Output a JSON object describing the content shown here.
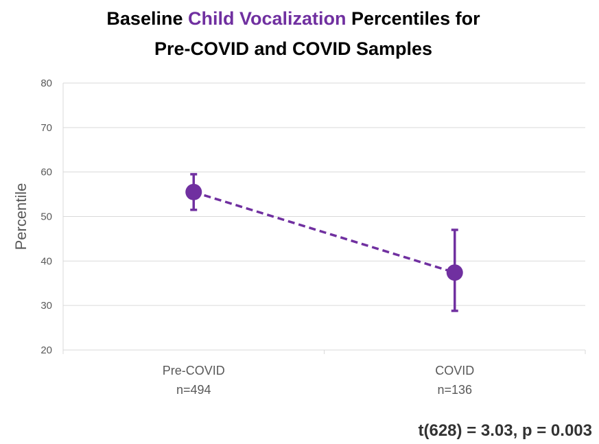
{
  "title": {
    "line1_pre": "Baseline ",
    "line1_highlight": "Child Vocalization",
    "line1_post": " Percentiles for",
    "line2": "Pre-COVID and COVID Samples"
  },
  "stat_text": "t(628) = 3.03, p = 0.003",
  "colors": {
    "accent": "#7030a0",
    "grid": "#d9d9d9",
    "axis_text": "#595959"
  },
  "chart_data": {
    "type": "line",
    "ylabel": "Percentile",
    "ylim": [
      20,
      80
    ],
    "yticks": [
      20,
      30,
      40,
      50,
      60,
      70,
      80
    ],
    "categories": [
      {
        "label": "Pre-COVID",
        "sublabel": "n=494"
      },
      {
        "label": "COVID",
        "sublabel": "n=136"
      }
    ],
    "series": [
      {
        "values": [
          55.5,
          37.4
        ],
        "error_low": [
          51.5,
          28.8
        ],
        "error_high": [
          59.5,
          47.0
        ],
        "line_style": "dashed",
        "color": "#7030a0"
      }
    ],
    "grid": true
  }
}
